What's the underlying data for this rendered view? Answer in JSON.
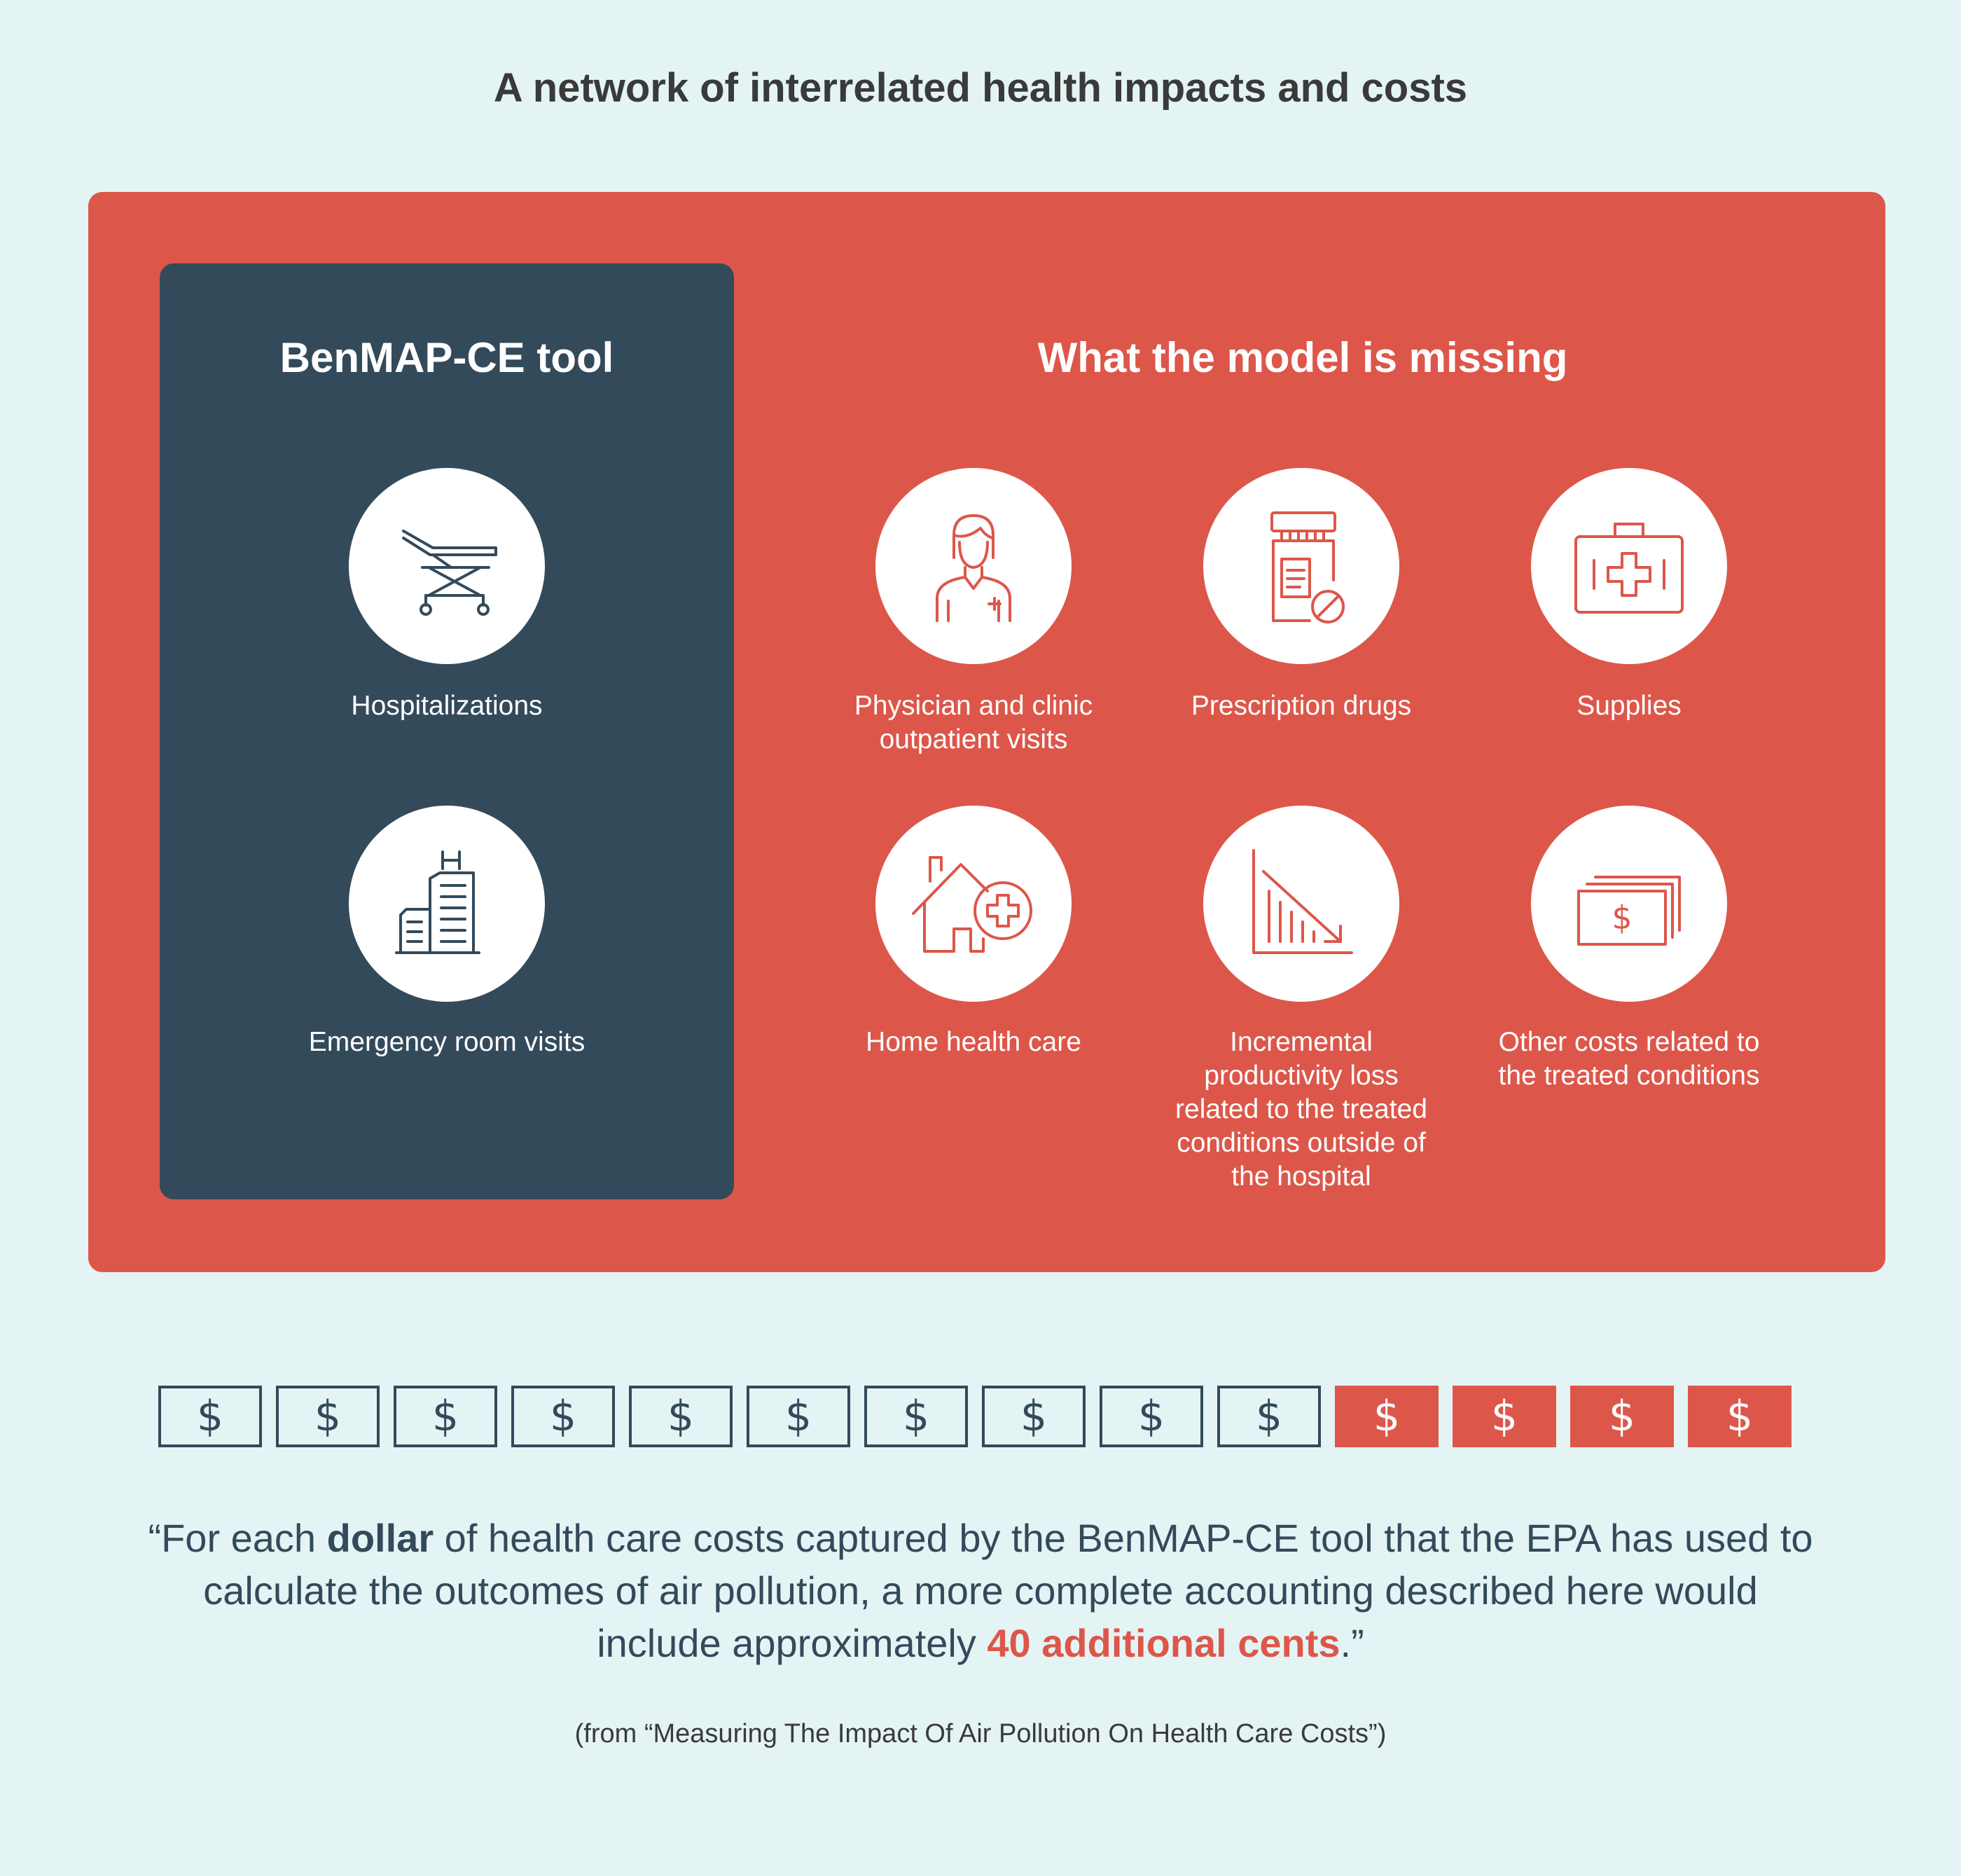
{
  "title": "A network of interrelated health impacts and costs",
  "benmap": {
    "heading": "BenMAP-CE tool",
    "items": [
      {
        "label": "Hospitalizations",
        "icon": "stretcher-icon"
      },
      {
        "label": "Emergency room visits",
        "icon": "hospital-building-icon"
      }
    ]
  },
  "missing": {
    "heading": "What the model is missing",
    "items": [
      {
        "label": "Physician and clinic outpatient visits",
        "icon": "physician-icon"
      },
      {
        "label": "Prescription drugs",
        "icon": "prescription-bottle-icon"
      },
      {
        "label": "Supplies",
        "icon": "first-aid-kit-icon"
      },
      {
        "label": "Home health care",
        "icon": "home-health-icon"
      },
      {
        "label": "Incremental productivity loss related to the treated conditions outside of the hospital",
        "icon": "declining-chart-icon"
      },
      {
        "label": "Other costs related to the treated conditions",
        "icon": "money-bill-icon"
      }
    ]
  },
  "dollar_bar": {
    "symbol": "$",
    "captured_count": 10,
    "additional_count": 4,
    "outline_color": "#334a5b",
    "fill_color": "#dc574a"
  },
  "quote": {
    "open": "“For each ",
    "bold1": "dollar",
    "middle": " of health care costs captured by the BenMAP-CE tool that the EPA has used to calculate the outcomes of air pollution, a more complete accounting described here would include approximately ",
    "bold2": "40 additional cents",
    "close": ".”"
  },
  "source": "(from “Measuring The Impact Of Air Pollution On Health Care Costs”)",
  "colors": {
    "background": "#e4f4f4",
    "red": "#dc574a",
    "navy": "#334a5b"
  }
}
